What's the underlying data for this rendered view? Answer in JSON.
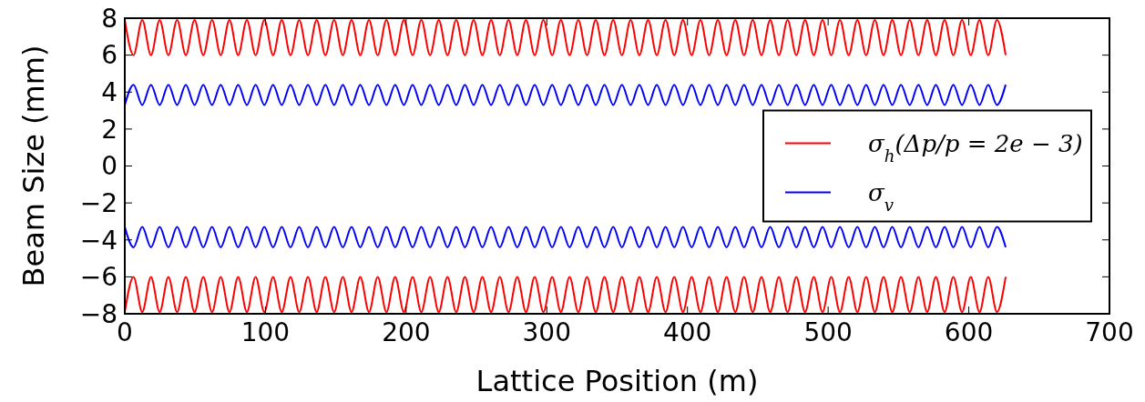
{
  "chart_data": {
    "type": "line",
    "xlabel": "Lattice Position (m)",
    "ylabel": "Beam Size (mm)",
    "xlim": [
      0,
      700
    ],
    "xticks": [
      0,
      100,
      200,
      300,
      400,
      500,
      600,
      700
    ],
    "ylim": [
      -8,
      8
    ],
    "yticks": [
      {
        "value": -8,
        "label": "−8"
      },
      {
        "value": -6,
        "label": "−6"
      },
      {
        "value": -4,
        "label": "−4"
      },
      {
        "value": -2,
        "label": "−2"
      },
      0,
      2,
      4,
      6,
      8
    ],
    "grid": false,
    "legend": "right",
    "line_style": "solid",
    "marker": "none",
    "x": [
      0,
      6.2,
      12.4,
      18.6,
      24.8,
      31,
      37.2,
      43.4,
      49.6,
      55.8,
      62,
      68.2,
      74.4,
      80.6,
      86.8,
      93,
      99.2,
      105.4,
      111.6,
      117.8,
      124,
      130.2,
      136.4,
      142.6,
      148.8,
      155,
      161.2,
      167.4,
      173.6,
      179.8,
      186,
      192.2,
      198.4,
      204.6,
      210.8,
      217,
      223.2,
      229.4,
      235.6,
      241.8,
      248,
      254.2,
      260.4,
      266.6,
      272.8,
      279,
      285.2,
      291.4,
      297.6,
      303.8,
      310,
      316.2,
      322.4,
      328.6,
      334.8,
      341,
      347.2,
      353.4,
      359.6,
      365.8,
      372,
      378.2,
      384.4,
      390.6,
      396.8,
      403,
      409.2,
      415.4,
      421.6,
      427.8,
      434,
      440.2,
      446.4,
      452.6,
      458.8,
      465,
      471.2,
      477.4,
      483.6,
      489.8,
      496,
      502.2,
      508.4,
      514.6,
      520.8,
      527,
      533.2,
      539.4,
      545.6,
      551.8,
      558,
      564.2,
      570.4,
      576.6,
      582.8,
      589,
      595.2,
      601.4,
      607.6,
      613.8,
      620,
      626.2
    ],
    "series": [
      {
        "name": "σ$_{h}$(Δp/p = 2e − 3)",
        "color": "#ff0000",
        "values": [
          7.9,
          6,
          7.9,
          6,
          7.9,
          6,
          7.9,
          6,
          7.9,
          6,
          7.9,
          6,
          7.9,
          6,
          7.9,
          6,
          7.9,
          6,
          7.9,
          6,
          7.9,
          6,
          7.9,
          6,
          7.9,
          6,
          7.9,
          6,
          7.9,
          6,
          7.9,
          6,
          7.9,
          6,
          7.9,
          6,
          7.9,
          6,
          7.9,
          6,
          7.9,
          6,
          7.9,
          6,
          7.9,
          6,
          7.9,
          6,
          7.9,
          6,
          7.9,
          6,
          7.9,
          6,
          7.9,
          6,
          7.9,
          6,
          7.9,
          6,
          7.9,
          6,
          7.9,
          6,
          7.9,
          6,
          7.9,
          6,
          7.9,
          6,
          7.9,
          6,
          7.9,
          6,
          7.9,
          6,
          7.9,
          6,
          7.9,
          6,
          7.9,
          6,
          7.9,
          6,
          7.9,
          6,
          7.9,
          6,
          7.9,
          6,
          7.9,
          6,
          7.9,
          6,
          7.9,
          6,
          7.9,
          6,
          7.9,
          6,
          7.9,
          6
        ]
      },
      {
        "name": "σ$_{v}$",
        "color": "#0000ff",
        "values": [
          3.3,
          4.4,
          3.3,
          4.4,
          3.3,
          4.4,
          3.3,
          4.4,
          3.3,
          4.4,
          3.3,
          4.4,
          3.3,
          4.4,
          3.3,
          4.4,
          3.3,
          4.4,
          3.3,
          4.4,
          3.3,
          4.4,
          3.3,
          4.4,
          3.3,
          4.4,
          3.3,
          4.4,
          3.3,
          4.4,
          3.3,
          4.4,
          3.3,
          4.4,
          3.3,
          4.4,
          3.3,
          4.4,
          3.3,
          4.4,
          3.3,
          4.4,
          3.3,
          4.4,
          3.3,
          4.4,
          3.3,
          4.4,
          3.3,
          4.4,
          3.3,
          4.4,
          3.3,
          4.4,
          3.3,
          4.4,
          3.3,
          4.4,
          3.3,
          4.4,
          3.3,
          4.4,
          3.3,
          4.4,
          3.3,
          4.4,
          3.3,
          4.4,
          3.3,
          4.4,
          3.3,
          4.4,
          3.3,
          4.4,
          3.3,
          4.4,
          3.3,
          4.4,
          3.3,
          4.4,
          3.3,
          4.4,
          3.3,
          4.4,
          3.3,
          4.4,
          3.3,
          4.4,
          3.3,
          4.4,
          3.3,
          4.4,
          3.3,
          4.4,
          3.3,
          4.4,
          3.3,
          4.4,
          3.3,
          4.4,
          3.3,
          4.4
        ]
      },
      {
        "color": "#0000ff",
        "values": [
          -3.3,
          -4.4,
          -3.3,
          -4.4,
          -3.3,
          -4.4,
          -3.3,
          -4.4,
          -3.3,
          -4.4,
          -3.3,
          -4.4,
          -3.3,
          -4.4,
          -3.3,
          -4.4,
          -3.3,
          -4.4,
          -3.3,
          -4.4,
          -3.3,
          -4.4,
          -3.3,
          -4.4,
          -3.3,
          -4.4,
          -3.3,
          -4.4,
          -3.3,
          -4.4,
          -3.3,
          -4.4,
          -3.3,
          -4.4,
          -3.3,
          -4.4,
          -3.3,
          -4.4,
          -3.3,
          -4.4,
          -3.3,
          -4.4,
          -3.3,
          -4.4,
          -3.3,
          -4.4,
          -3.3,
          -4.4,
          -3.3,
          -4.4,
          -3.3,
          -4.4,
          -3.3,
          -4.4,
          -3.3,
          -4.4,
          -3.3,
          -4.4,
          -3.3,
          -4.4,
          -3.3,
          -4.4,
          -3.3,
          -4.4,
          -3.3,
          -4.4,
          -3.3,
          -4.4,
          -3.3,
          -4.4,
          -3.3,
          -4.4,
          -3.3,
          -4.4,
          -3.3,
          -4.4,
          -3.3,
          -4.4,
          -3.3,
          -4.4,
          -3.3,
          -4.4,
          -3.3,
          -4.4,
          -3.3,
          -4.4,
          -3.3,
          -4.4,
          -3.3,
          -4.4,
          -3.3,
          -4.4,
          -3.3,
          -4.4,
          -3.3,
          -4.4,
          -3.3,
          -4.4,
          -3.3,
          -4.4,
          -3.3,
          -4.4
        ]
      },
      {
        "color": "#ff0000",
        "values": [
          -7.9,
          -6,
          -7.9,
          -6,
          -7.9,
          -6,
          -7.9,
          -6,
          -7.9,
          -6,
          -7.9,
          -6,
          -7.9,
          -6,
          -7.9,
          -6,
          -7.9,
          -6,
          -7.9,
          -6,
          -7.9,
          -6,
          -7.9,
          -6,
          -7.9,
          -6,
          -7.9,
          -6,
          -7.9,
          -6,
          -7.9,
          -6,
          -7.9,
          -6,
          -7.9,
          -6,
          -7.9,
          -6,
          -7.9,
          -6,
          -7.9,
          -6,
          -7.9,
          -6,
          -7.9,
          -6,
          -7.9,
          -6,
          -7.9,
          -6,
          -7.9,
          -6,
          -7.9,
          -6,
          -7.9,
          -6,
          -7.9,
          -6,
          -7.9,
          -6,
          -7.9,
          -6,
          -7.9,
          -6,
          -7.9,
          -6,
          -7.9,
          -6,
          -7.9,
          -6,
          -7.9,
          -6,
          -7.9,
          -6,
          -7.9,
          -6,
          -7.9,
          -6,
          -7.9,
          -6,
          -7.9,
          -6,
          -7.9,
          -6,
          -7.9,
          -6,
          -7.9,
          -6,
          -7.9,
          -6,
          -7.9,
          -6,
          -7.9,
          -6,
          -7.9,
          -6,
          -7.9,
          -6,
          -7.9,
          -6,
          -7.9,
          -6
        ]
      }
    ]
  }
}
